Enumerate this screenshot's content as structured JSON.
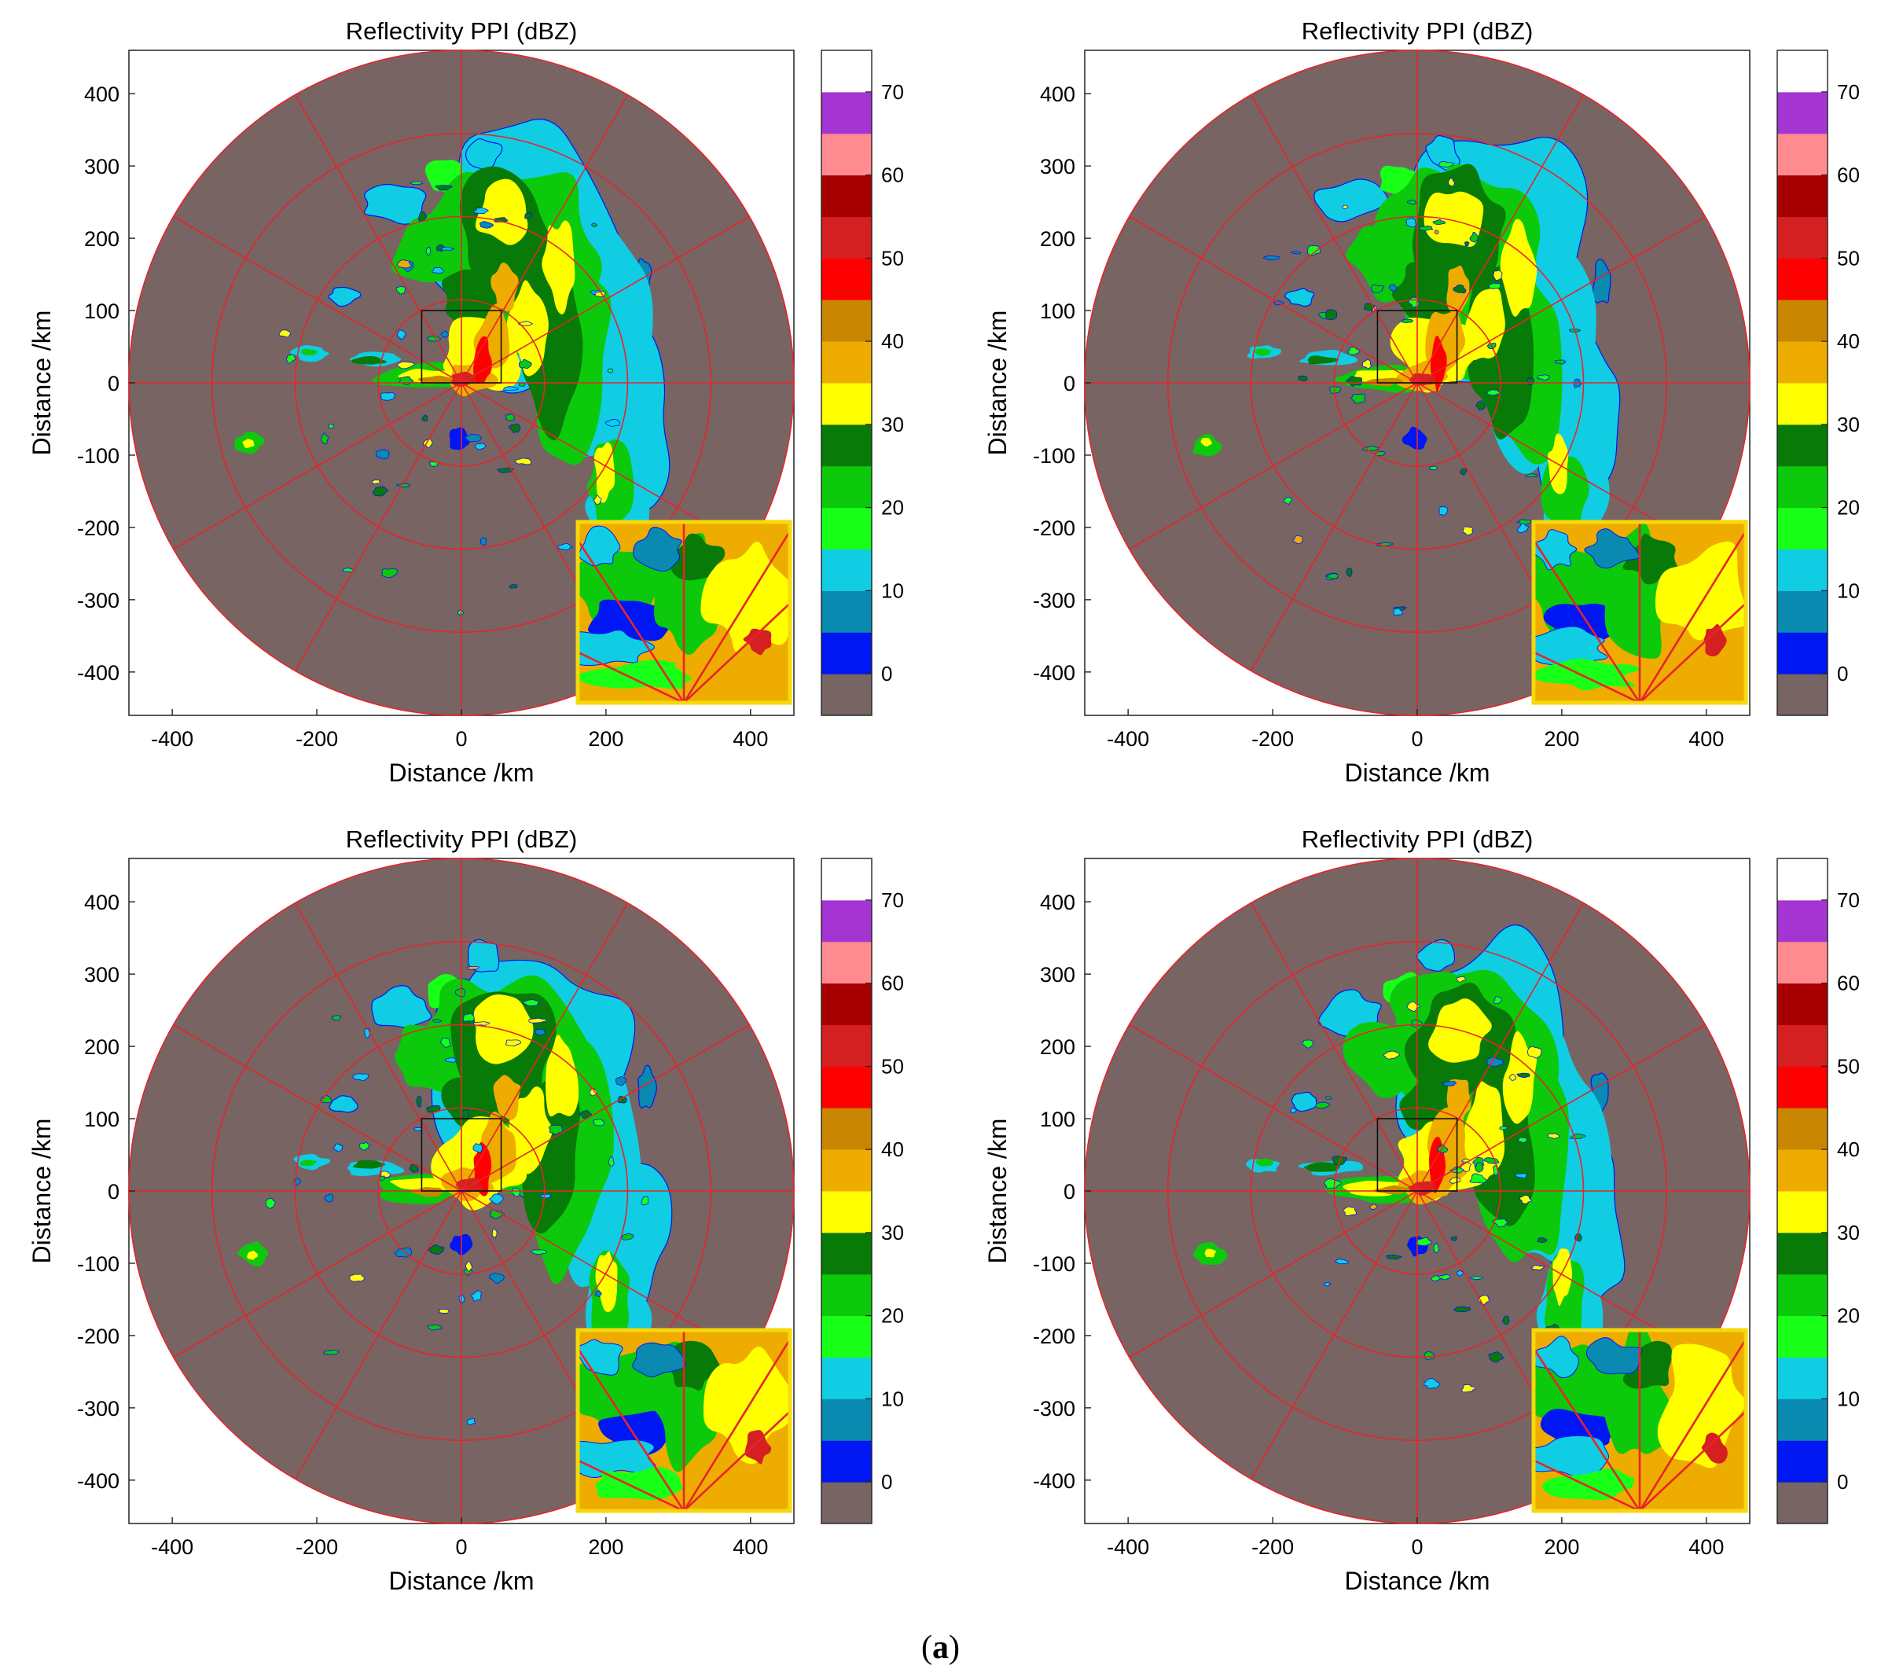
{
  "caption": {
    "open": "(",
    "letter": "a",
    "close": ")"
  },
  "colors": {
    "no_echo": "#776463",
    "range_rings": "#e8242a",
    "panel_border": "#222222",
    "inset_frame": "#f5d90a"
  },
  "colorbar": {
    "ticks": [
      "70",
      "60",
      "50",
      "40",
      "30",
      "20",
      "10",
      "0"
    ],
    "tick_values": [
      70,
      60,
      50,
      40,
      30,
      20,
      10,
      0
    ],
    "range": [
      -5,
      75
    ],
    "bins": [
      {
        "from": -5,
        "to": 0,
        "color": "#776463"
      },
      {
        "from": 0,
        "to": 5,
        "color": "#0016f2"
      },
      {
        "from": 5,
        "to": 10,
        "color": "#0a8ab0"
      },
      {
        "from": 10,
        "to": 15,
        "color": "#10cde3"
      },
      {
        "from": 15,
        "to": 20,
        "color": "#18ff18"
      },
      {
        "from": 20,
        "to": 25,
        "color": "#0cc90c"
      },
      {
        "from": 25,
        "to": 30,
        "color": "#077a07"
      },
      {
        "from": 30,
        "to": 35,
        "color": "#ffff00"
      },
      {
        "from": 35,
        "to": 40,
        "color": "#eeac00"
      },
      {
        "from": 40,
        "to": 45,
        "color": "#c98600"
      },
      {
        "from": 45,
        "to": 50,
        "color": "#ff0000"
      },
      {
        "from": 50,
        "to": 55,
        "color": "#d42020"
      },
      {
        "from": 55,
        "to": 60,
        "color": "#a80000"
      },
      {
        "from": 60,
        "to": 65,
        "color": "#ff8a8f"
      },
      {
        "from": 65,
        "to": 70,
        "color": "#a535d2"
      },
      {
        "from": 70,
        "to": 75,
        "color": "#ffffff"
      }
    ]
  },
  "chart_data": [
    {
      "type": "heatmap",
      "title": "Reflectivity PPI (dBZ)",
      "xlabel": "Distance /km",
      "ylabel": "Distance /km",
      "xlim": [
        -460,
        460
      ],
      "ylim": [
        -460,
        460
      ],
      "xticks": [
        "-400",
        "-200",
        "0",
        "200",
        "400"
      ],
      "xtick_values": [
        -400,
        -200,
        0,
        200,
        400
      ],
      "yticks": [
        "400",
        "300",
        "200",
        "100",
        "0",
        "-100",
        "-200",
        "-300",
        "-400"
      ],
      "ytick_values": [
        400,
        300,
        200,
        100,
        0,
        -100,
        -200,
        -300,
        -400
      ],
      "range_rings_km": [
        115,
        230,
        345,
        460
      ],
      "radial_spokes_deg": [
        0,
        30,
        60,
        90,
        120,
        150,
        180,
        210,
        240,
        270,
        300,
        330
      ],
      "zoom_box_km": {
        "x": [
          -55,
          55
        ],
        "y": [
          0,
          100
        ]
      },
      "echo_variant": 0,
      "zoom_inset": "bottom-right"
    },
    {
      "type": "heatmap",
      "title": "Reflectivity PPI (dBZ)",
      "xlabel": "Distance /km",
      "ylabel": "Distance /km",
      "xlim": [
        -460,
        460
      ],
      "ylim": [
        -460,
        460
      ],
      "xticks": [
        "-400",
        "-200",
        "0",
        "200",
        "400"
      ],
      "xtick_values": [
        -400,
        -200,
        0,
        200,
        400
      ],
      "yticks": [
        "400",
        "300",
        "200",
        "100",
        "0",
        "-100",
        "-200",
        "-300",
        "-400"
      ],
      "ytick_values": [
        400,
        300,
        200,
        100,
        0,
        -100,
        -200,
        -300,
        -400
      ],
      "range_rings_km": [
        115,
        230,
        345,
        460
      ],
      "radial_spokes_deg": [
        0,
        30,
        60,
        90,
        120,
        150,
        180,
        210,
        240,
        270,
        300,
        330
      ],
      "zoom_box_km": {
        "x": [
          -55,
          55
        ],
        "y": [
          0,
          100
        ]
      },
      "echo_variant": 1,
      "zoom_inset": "bottom-right"
    },
    {
      "type": "heatmap",
      "title": "Reflectivity PPI (dBZ)",
      "xlabel": "Distance /km",
      "ylabel": "Distance /km",
      "xlim": [
        -460,
        460
      ],
      "ylim": [
        -460,
        460
      ],
      "xticks": [
        "-400",
        "-200",
        "0",
        "200",
        "400"
      ],
      "xtick_values": [
        -400,
        -200,
        0,
        200,
        400
      ],
      "yticks": [
        "400",
        "300",
        "200",
        "100",
        "0",
        "-100",
        "-200",
        "-300",
        "-400"
      ],
      "ytick_values": [
        400,
        300,
        200,
        100,
        0,
        -100,
        -200,
        -300,
        -400
      ],
      "range_rings_km": [
        115,
        230,
        345,
        460
      ],
      "radial_spokes_deg": [
        0,
        30,
        60,
        90,
        120,
        150,
        180,
        210,
        240,
        270,
        300,
        330
      ],
      "zoom_box_km": {
        "x": [
          -55,
          55
        ],
        "y": [
          0,
          100
        ]
      },
      "echo_variant": 2,
      "zoom_inset": "bottom-right"
    },
    {
      "type": "heatmap",
      "title": "Reflectivity PPI (dBZ)",
      "xlabel": "Distance /km",
      "ylabel": "Distance /km",
      "xlim": [
        -460,
        460
      ],
      "ylim": [
        -460,
        460
      ],
      "xticks": [
        "-400",
        "-200",
        "0",
        "200",
        "400"
      ],
      "xtick_values": [
        -400,
        -200,
        0,
        200,
        400
      ],
      "yticks": [
        "400",
        "300",
        "200",
        "100",
        "0",
        "-100",
        "-200",
        "-300",
        "-400"
      ],
      "ytick_values": [
        400,
        300,
        200,
        100,
        0,
        -100,
        -200,
        -300,
        -400
      ],
      "range_rings_km": [
        115,
        230,
        345,
        460
      ],
      "radial_spokes_deg": [
        0,
        30,
        60,
        90,
        120,
        150,
        180,
        210,
        240,
        270,
        300,
        330
      ],
      "zoom_box_km": {
        "x": [
          -55,
          55
        ],
        "y": [
          0,
          100
        ]
      },
      "echo_variant": 3,
      "zoom_inset": "bottom-right"
    }
  ]
}
